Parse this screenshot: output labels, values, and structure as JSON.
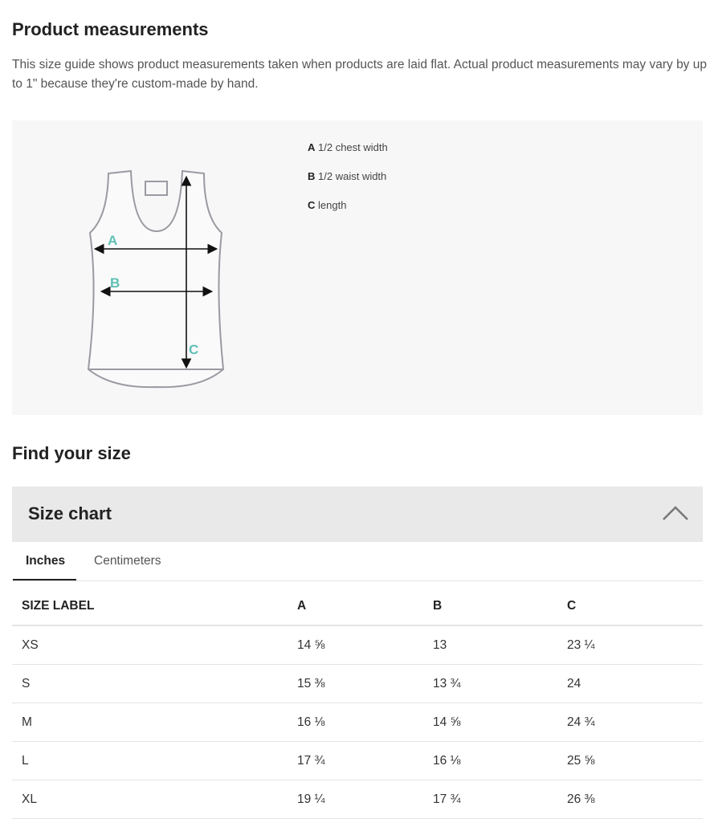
{
  "measurements": {
    "title": "Product measurements",
    "description": "This size guide shows product measurements taken when products are laid flat. Actual product measurements may vary by up to 1\" because they're custom-made by hand.",
    "diagram_labels": [
      "A",
      "B",
      "C"
    ],
    "legend": [
      {
        "key": "A",
        "label": "1/2 chest width"
      },
      {
        "key": "B",
        "label": "1/2 waist width"
      },
      {
        "key": "C",
        "label": "length"
      }
    ],
    "accent_color": "#5fbfb5"
  },
  "find_size": {
    "title": "Find your size"
  },
  "size_chart": {
    "title": "Size chart",
    "expanded": true,
    "tabs": [
      {
        "label": "Inches",
        "active": true
      },
      {
        "label": "Centimeters",
        "active": false
      }
    ],
    "columns": [
      "SIZE LABEL",
      "A",
      "B",
      "C"
    ],
    "rows": [
      [
        "XS",
        "14 ⅝",
        "13",
        "23 ¼"
      ],
      [
        "S",
        "15 ⅜",
        "13 ¾",
        "24"
      ],
      [
        "M",
        "16 ⅛",
        "14 ⅝",
        "24 ¾"
      ],
      [
        "L",
        "17 ¾",
        "16 ⅛",
        "25 ⅝"
      ],
      [
        "XL",
        "19 ¼",
        "17 ¾",
        "26 ⅜"
      ]
    ]
  }
}
